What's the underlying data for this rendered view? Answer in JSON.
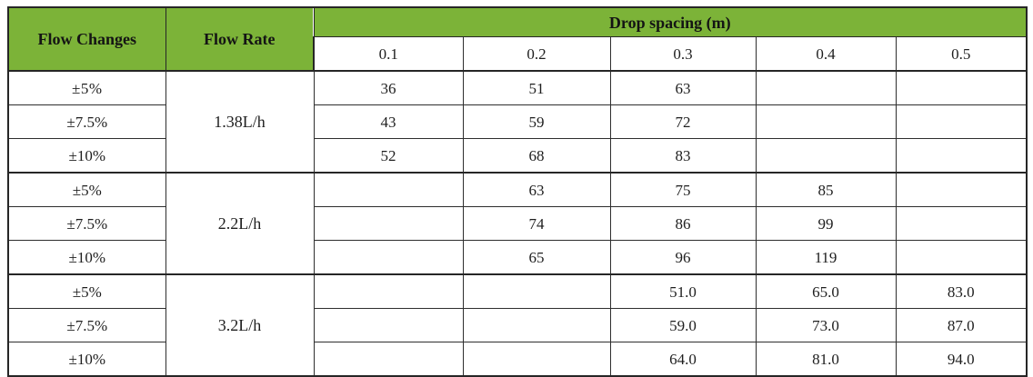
{
  "colors": {
    "header_green": "#7cb338",
    "border": "#2e2e2e",
    "text": "#1e1e1e"
  },
  "table": {
    "header": {
      "flow_changes": "Flow Changes",
      "flow_rate": "Flow Rate",
      "drop_spacing": "Drop spacing (m)",
      "spacing_columns": {
        "c1": "0.1",
        "c2": "0.2",
        "c3": "0.3",
        "c4": "0.4",
        "c5": "0.5"
      }
    },
    "groups": [
      {
        "flow_rate": "1.38L/h",
        "rows": [
          {
            "flow_change": "±5%",
            "values": [
              "36",
              "51",
              "63",
              "",
              ""
            ]
          },
          {
            "flow_change": "±7.5%",
            "values": [
              "43",
              "59",
              "72",
              "",
              ""
            ]
          },
          {
            "flow_change": "±10%",
            "values": [
              "52",
              "68",
              "83",
              "",
              ""
            ]
          }
        ]
      },
      {
        "flow_rate": "2.2L/h",
        "rows": [
          {
            "flow_change": "±5%",
            "values": [
              "",
              "63",
              "75",
              "85",
              ""
            ]
          },
          {
            "flow_change": "±7.5%",
            "values": [
              "",
              "74",
              "86",
              "99",
              ""
            ]
          },
          {
            "flow_change": "±10%",
            "values": [
              "",
              "65",
              "96",
              "119",
              ""
            ]
          }
        ]
      },
      {
        "flow_rate": "3.2L/h",
        "rows": [
          {
            "flow_change": "±5%",
            "values": [
              "",
              "",
              "51.0",
              "65.0",
              "83.0"
            ]
          },
          {
            "flow_change": "±7.5%",
            "values": [
              "",
              "",
              "59.0",
              "73.0",
              "87.0"
            ]
          },
          {
            "flow_change": "±10%",
            "values": [
              "",
              "",
              "64.0",
              "81.0",
              "94.0"
            ]
          }
        ]
      }
    ]
  },
  "chart_data": {
    "type": "table",
    "title": "Drop spacing (m)",
    "row_header_labels": [
      "Flow Changes",
      "Flow Rate"
    ],
    "categories": [
      "0.1",
      "0.2",
      "0.3",
      "0.4",
      "0.5"
    ],
    "series": [
      {
        "name": "1.38L/h ±5%",
        "values": [
          36,
          51,
          63,
          null,
          null
        ]
      },
      {
        "name": "1.38L/h ±7.5%",
        "values": [
          43,
          59,
          72,
          null,
          null
        ]
      },
      {
        "name": "1.38L/h ±10%",
        "values": [
          52,
          68,
          83,
          null,
          null
        ]
      },
      {
        "name": "2.2L/h ±5%",
        "values": [
          null,
          63,
          75,
          85,
          null
        ]
      },
      {
        "name": "2.2L/h ±7.5%",
        "values": [
          null,
          74,
          86,
          99,
          null
        ]
      },
      {
        "name": "2.2L/h ±10%",
        "values": [
          null,
          65,
          96,
          119,
          null
        ]
      },
      {
        "name": "3.2L/h ±5%",
        "values": [
          null,
          null,
          51.0,
          65.0,
          83.0
        ]
      },
      {
        "name": "3.2L/h ±7.5%",
        "values": [
          null,
          null,
          59.0,
          73.0,
          87.0
        ]
      },
      {
        "name": "3.2L/h ±10%",
        "values": [
          null,
          null,
          64.0,
          81.0,
          94.0
        ]
      }
    ]
  }
}
